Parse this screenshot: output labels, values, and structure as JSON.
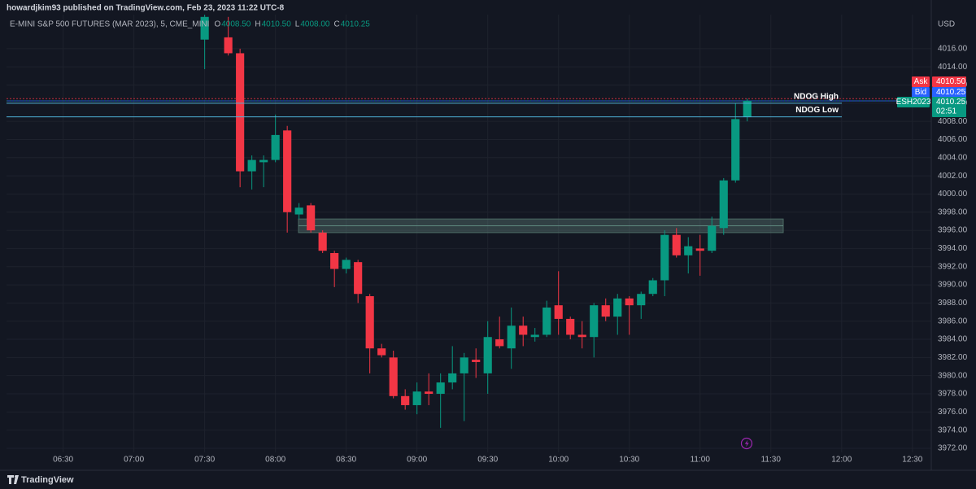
{
  "chart_data": {
    "type": "candlestick",
    "title": "howardjkim93 published on TradingView.com, Feb 23, 2023 11:22 UTC-8",
    "subtitle": "E-MINI S&P 500 FUTURES (MAR 2023), 5, CME_MINI",
    "ohlc_legend": [
      {
        "key": "O",
        "value": 4008.5,
        "label": "4008.50"
      },
      {
        "key": "H",
        "value": 4010.5,
        "label": "4010.50"
      },
      {
        "key": "L",
        "value": 4008,
        "label": "4008.00"
      },
      {
        "key": "C",
        "value": 4010.25,
        "label": "4010.25"
      }
    ],
    "currency": "USD",
    "brand": "TradingView",
    "up_color": "#089981",
    "down_color": "#f23645",
    "x": [
      "07:30",
      "07:40",
      "07:45",
      "07:50",
      "07:55",
      "08:00",
      "08:05",
      "08:10",
      "08:15",
      "08:20",
      "08:25",
      "08:30",
      "08:35",
      "08:40",
      "08:45",
      "08:50",
      "08:55",
      "09:00",
      "09:05",
      "09:10",
      "09:15",
      "09:20",
      "09:25",
      "09:30",
      "09:35",
      "09:40",
      "09:45",
      "09:50",
      "09:55",
      "10:00",
      "10:05",
      "10:10",
      "10:15",
      "10:20",
      "10:25",
      "10:30",
      "10:35",
      "10:40",
      "10:45",
      "10:50",
      "10:55",
      "11:00",
      "11:05",
      "11:10",
      "11:15",
      "11:20"
    ],
    "open": [
      4017,
      4017.25,
      4015.5,
      4002.5,
      4003.5,
      4003.75,
      4007,
      3997.75,
      3998.75,
      3995.75,
      3993.5,
      3991.75,
      3992.5,
      3988.75,
      3983,
      3982,
      3977.75,
      3976.75,
      3978.25,
      3978,
      3979.25,
      3980.25,
      3981.75,
      3980.25,
      3984,
      3983,
      3985.5,
      3984.25,
      3984.5,
      3987.75,
      3986.25,
      3984.5,
      3984.25,
      3987.75,
      3986.5,
      3988.5,
      3987.75,
      3989,
      3990.5,
      3995.5,
      3993.25,
      3994,
      3993.75,
      3996.25,
      4001.5,
      4008.5
    ],
    "high": [
      4019.75,
      4019.5,
      4016,
      4004.25,
      4004.25,
      4008.75,
      4007.5,
      3999,
      3999,
      3996,
      3993.75,
      3993,
      3992.75,
      3989,
      3983.5,
      3982.75,
      3978.5,
      3979.25,
      3980.25,
      3980.25,
      3983.25,
      3982.5,
      3983,
      3986,
      3986.5,
      3987.5,
      3986.5,
      3985.25,
      3988.25,
      3991.5,
      3986.5,
      3986,
      3988,
      3988.5,
      3989,
      3988.75,
      3989.25,
      3990.75,
      3996,
      3996.25,
      3995.25,
      3995.5,
      3997.5,
      4001.75,
      4010,
      4010.5
    ],
    "low": [
      4013.75,
      4015.25,
      4000.75,
      4000.5,
      4000.75,
      4003.5,
      3995.75,
      3997.25,
      3995.75,
      3993.5,
      3989.75,
      3991.25,
      3988,
      3980.25,
      3982,
      3977.5,
      3976.25,
      3975.75,
      3976.75,
      3974.25,
      3978.5,
      3975,
      3979.75,
      3978,
      3983,
      3980.75,
      3983.25,
      3983.75,
      3984.25,
      3984.5,
      3984,
      3983,
      3982,
      3986,
      3984.5,
      3984.5,
      3986.25,
      3988.75,
      3988.75,
      3993,
      3991.25,
      3991,
      3993.5,
      3995.5,
      4001.25,
      4008
    ],
    "close": [
      4019.5,
      4015.5,
      4002.5,
      4003.75,
      4003.75,
      4006.5,
      3998,
      3998.5,
      3996,
      3993.75,
      3991.75,
      3992.75,
      3989,
      3983,
      3982.25,
      3977.75,
      3976.75,
      3978.25,
      3978,
      3979.25,
      3980.25,
      3982,
      3981.5,
      3984.25,
      3983.25,
      3985.5,
      3984.5,
      3984.5,
      3987.5,
      3986.25,
      3984.5,
      3984.25,
      3987.75,
      3986.5,
      3988.5,
      3987.75,
      3989,
      3990.5,
      3995.5,
      3993.25,
      3994.25,
      3993.75,
      3996.5,
      4001.5,
      4008.25,
      4010.25
    ],
    "xlim": [
      "06:06",
      "12:38"
    ],
    "xticks": [
      "06:30",
      "07:00",
      "07:30",
      "08:00",
      "08:30",
      "09:00",
      "09:30",
      "10:00",
      "10:30",
      "11:00",
      "11:30",
      "12:00",
      "12:30"
    ],
    "ylim": [
      3971.55,
      4019.75
    ],
    "yticks": [
      {
        "value": 3972,
        "label": "3972.00"
      },
      {
        "value": 3974,
        "label": "3974.00"
      },
      {
        "value": 3976,
        "label": "3976.00"
      },
      {
        "value": 3978,
        "label": "3978.00"
      },
      {
        "value": 3980,
        "label": "3980.00"
      },
      {
        "value": 3982,
        "label": "3982.00"
      },
      {
        "value": 3984,
        "label": "3984.00"
      },
      {
        "value": 3986,
        "label": "3986.00"
      },
      {
        "value": 3988,
        "label": "3988.00"
      },
      {
        "value": 3990,
        "label": "3990.00"
      },
      {
        "value": 3992,
        "label": "3992.00"
      },
      {
        "value": 3994,
        "label": "3994.00"
      },
      {
        "value": 3996,
        "label": "3996.00"
      },
      {
        "value": 3998,
        "label": "3998.00"
      },
      {
        "value": 4000,
        "label": "4000.00"
      },
      {
        "value": 4002,
        "label": "4002.00"
      },
      {
        "value": 4004,
        "label": "4004.00"
      },
      {
        "value": 4006,
        "label": "4006.00"
      },
      {
        "value": 4008,
        "label": "4008.00"
      },
      {
        "value": 4010,
        "label": "4010.00"
      },
      {
        "value": 4012,
        "label": "4012.00"
      },
      {
        "value": 4014,
        "label": "4014.00"
      },
      {
        "value": 4016,
        "label": "4016.00"
      }
    ],
    "grid": true,
    "zone": {
      "low": 3995.75,
      "mid": 3996.5,
      "high": 3997.25
    },
    "levels": [
      {
        "label": "NDOG High",
        "value": 4010,
        "color": "#4fb3d9"
      },
      {
        "label": "NDOG Low",
        "value": 4008.5,
        "color": "#4fb3d9"
      }
    ],
    "price_labels": [
      {
        "name": "Ask",
        "value": 4010.5,
        "label": "4010.50",
        "color": "#f23645"
      },
      {
        "name": "Bid",
        "value": 4010.25,
        "label": "4010.25",
        "color": "#2962ff"
      },
      {
        "name": "ESH2023",
        "value": 4010.25,
        "label": "4010.25",
        "color": "#089981"
      }
    ],
    "countdown": "02:51"
  }
}
